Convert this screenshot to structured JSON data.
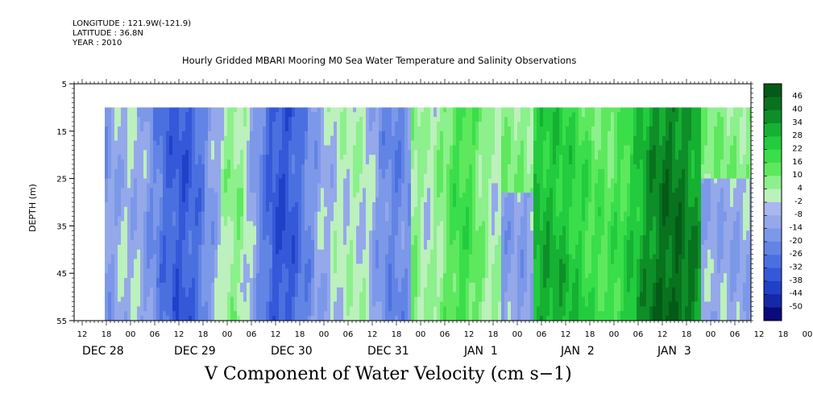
{
  "header": {
    "longitude": "LONGITUDE : 121.9W(-121.9)",
    "latitude": "LATITUDE : 36.8N",
    "year": "YEAR : 2010",
    "title": "Hourly Gridded MBARI Mooring M0 Sea Water Temperature and Salinity Observations"
  },
  "footer": {
    "variable_title": "V Component of Water Velocity (cm s−1)"
  },
  "chart_data": {
    "type": "heatmap",
    "title": "Hourly Gridded MBARI Mooring M0 Sea Water Temperature and Salinity Observations",
    "xlabel": "",
    "ylabel": "DEPTH (m)",
    "variable": "V Component of Water Velocity (cm s−1)",
    "ylim": [
      5,
      55
    ],
    "y_inverted": true,
    "y_ticks": [
      5,
      15,
      25,
      35,
      45,
      55
    ],
    "data_depth_range": [
      10,
      55
    ],
    "x_start": "DEC 28 12",
    "data_start": "DEC 28 17",
    "data_end": "JAN 3 23",
    "x_hour_labels": [
      "12",
      "18",
      "00",
      "06",
      "12",
      "18",
      "00",
      "06",
      "12",
      "18",
      "00",
      "06",
      "12",
      "18",
      "00",
      "06",
      "12",
      "18",
      "00",
      "06",
      "12",
      "18",
      "00",
      "06",
      "12",
      "18",
      "00",
      "06",
      "12",
      "18",
      "00",
      "06",
      "12",
      "18"
    ],
    "x_day_labels": [
      "DEC 28",
      "DEC 29",
      "DEC 30",
      "DEC 31",
      "JAN  1",
      "JAN  2",
      "JAN  3"
    ],
    "colorbar": {
      "levels": [
        -50,
        -44,
        -38,
        -32,
        -26,
        -20,
        -14,
        -8,
        -2,
        4,
        10,
        16,
        22,
        28,
        34,
        40,
        46
      ],
      "labels": [
        "46",
        "40",
        "34",
        "28",
        "22",
        "16",
        "10",
        "4",
        "-2",
        "-8",
        "-14",
        "-20",
        "-26",
        "-32",
        "-38",
        "-44",
        "-50"
      ],
      "negative_colors": [
        "#0a0a78",
        "#1428a8",
        "#2040c8",
        "#3458d8",
        "#4a70e0",
        "#6284e4",
        "#7c98e8",
        "#94a8ea",
        "#aab6ee"
      ],
      "positive_colors": [
        "#bcf0bc",
        "#8cf08c",
        "#5ee85e",
        "#3ade4a",
        "#22cc3e",
        "#16b032",
        "#0e8e28",
        "#08721e",
        "#045a16"
      ]
    },
    "field_summary": [
      {
        "period": "DEC 28 17 - DEC 31 12",
        "sign": "mostly negative",
        "range": [
          -38,
          4
        ]
      },
      {
        "period": "DEC 31 12 - JAN 1 06",
        "sign": "positive",
        "range": [
          4,
          22
        ]
      },
      {
        "period": "JAN 1 06 - JAN 1 20",
        "sign": "negative at depth",
        "range": [
          -14,
          10
        ]
      },
      {
        "period": "JAN 1 20 - JAN 3 12",
        "sign": "positive",
        "range": [
          10,
          46
        ]
      },
      {
        "period": "JAN 3 12 - JAN 3 23",
        "sign": "mixed",
        "range": [
          -14,
          16
        ]
      }
    ]
  }
}
